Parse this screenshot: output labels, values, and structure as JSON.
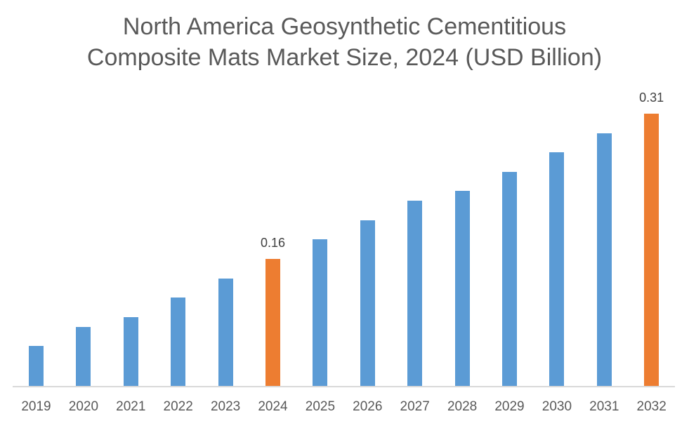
{
  "chart_data": {
    "type": "bar",
    "title": "North America Geosynthetic Cementitious Composite Mats Market Size, 2024 (USD Billion)",
    "title_lines": [
      "North America Geosynthetic Cementitious",
      "Composite Mats Market Size, 2024 (USD Billion)"
    ],
    "xlabel": "",
    "ylabel": "USD Billion",
    "categories": [
      "2019",
      "2020",
      "2021",
      "2022",
      "2023",
      "2024",
      "2025",
      "2026",
      "2027",
      "2028",
      "2029",
      "2030",
      "2031",
      "2032"
    ],
    "values": [
      0.07,
      0.09,
      0.1,
      0.12,
      0.14,
      0.16,
      0.18,
      0.2,
      0.22,
      0.23,
      0.25,
      0.27,
      0.29,
      0.31
    ],
    "data_labels": {
      "2024": "0.16",
      "2032": "0.31"
    },
    "highlighted": [
      "2024",
      "2032"
    ],
    "colors": {
      "default": "#5b9bd5",
      "highlight": "#ed7d31",
      "axis": "#d9d9d9",
      "text": "#595959"
    },
    "grid": false,
    "legend": "none",
    "yaxis_visible": false
  }
}
